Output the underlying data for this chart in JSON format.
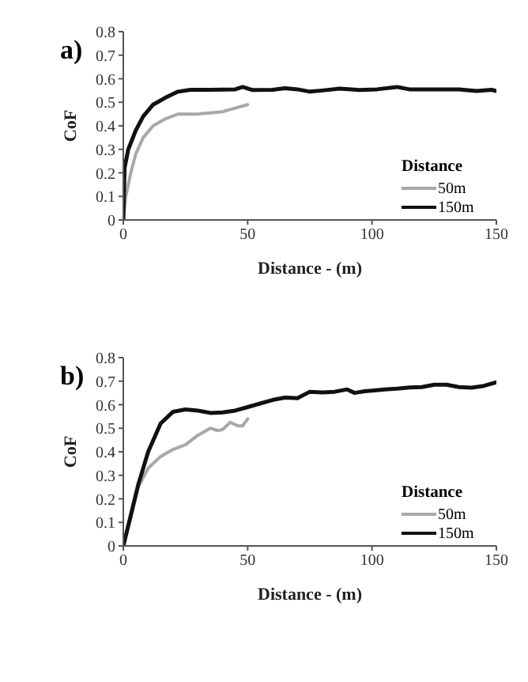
{
  "chart_data": [
    {
      "type": "line",
      "title": "a)",
      "xlabel": "Distance - (m)",
      "ylabel": "CoF",
      "legend_title": "Distance",
      "legend": "bottom right",
      "grid": false,
      "marker": "none",
      "line_style": "solid",
      "xlim": [
        0,
        150
      ],
      "xticks": [
        0,
        50,
        100,
        150
      ],
      "ylim": [
        0,
        0.8
      ],
      "yticks": [
        0,
        0.1,
        0.2,
        0.3,
        0.4,
        0.5,
        0.6,
        0.7,
        0.8
      ],
      "series": [
        {
          "name": "50m",
          "color": "#a8a8a8",
          "x": [
            0,
            1,
            3,
            5,
            8,
            12,
            17,
            22,
            30,
            40,
            45,
            50
          ],
          "values": [
            0,
            0.1,
            0.2,
            0.28,
            0.35,
            0.4,
            0.43,
            0.45,
            0.45,
            0.46,
            0.475,
            0.49
          ]
        },
        {
          "name": "150m",
          "color": "#111111",
          "x": [
            0,
            0.5,
            2,
            5,
            8,
            12,
            17,
            22,
            27,
            35,
            45,
            48,
            52,
            60,
            65,
            70,
            75,
            80,
            87,
            95,
            102,
            110,
            115,
            125,
            135,
            142,
            148,
            150
          ],
          "values": [
            0,
            0.22,
            0.3,
            0.38,
            0.44,
            0.49,
            0.52,
            0.545,
            0.553,
            0.553,
            0.555,
            0.565,
            0.552,
            0.553,
            0.56,
            0.555,
            0.545,
            0.55,
            0.558,
            0.552,
            0.555,
            0.565,
            0.555,
            0.555,
            0.555,
            0.548,
            0.553,
            0.548
          ]
        }
      ]
    },
    {
      "type": "line",
      "title": "b)",
      "xlabel": "Distance - (m)",
      "ylabel": "CoF",
      "legend_title": "Distance",
      "legend": "bottom right",
      "grid": false,
      "marker": "none",
      "line_style": "solid",
      "xlim": [
        0,
        150
      ],
      "xticks": [
        0,
        50,
        100,
        150
      ],
      "ylim": [
        0,
        0.8
      ],
      "yticks": [
        0,
        0.1,
        0.2,
        0.3,
        0.4,
        0.5,
        0.6,
        0.7,
        0.8
      ],
      "series": [
        {
          "name": "50m",
          "color": "#a8a8a8",
          "x": [
            0,
            3,
            6,
            10,
            15,
            20,
            25,
            30,
            35,
            38,
            40,
            43,
            46,
            48,
            50
          ],
          "values": [
            0,
            0.12,
            0.25,
            0.33,
            0.38,
            0.41,
            0.43,
            0.47,
            0.5,
            0.49,
            0.495,
            0.525,
            0.51,
            0.51,
            0.54
          ]
        },
        {
          "name": "150m",
          "color": "#111111",
          "x": [
            0,
            3,
            6,
            10,
            15,
            20,
            25,
            30,
            35,
            40,
            45,
            50,
            55,
            60,
            65,
            70,
            75,
            80,
            85,
            90,
            93,
            97,
            100,
            105,
            110,
            115,
            120,
            125,
            130,
            135,
            140,
            145,
            150
          ],
          "values": [
            0,
            0.13,
            0.26,
            0.4,
            0.52,
            0.57,
            0.58,
            0.575,
            0.565,
            0.567,
            0.575,
            0.59,
            0.605,
            0.62,
            0.63,
            0.628,
            0.655,
            0.652,
            0.655,
            0.665,
            0.65,
            0.657,
            0.66,
            0.665,
            0.668,
            0.673,
            0.675,
            0.685,
            0.685,
            0.675,
            0.672,
            0.68,
            0.695
          ]
        }
      ]
    }
  ]
}
